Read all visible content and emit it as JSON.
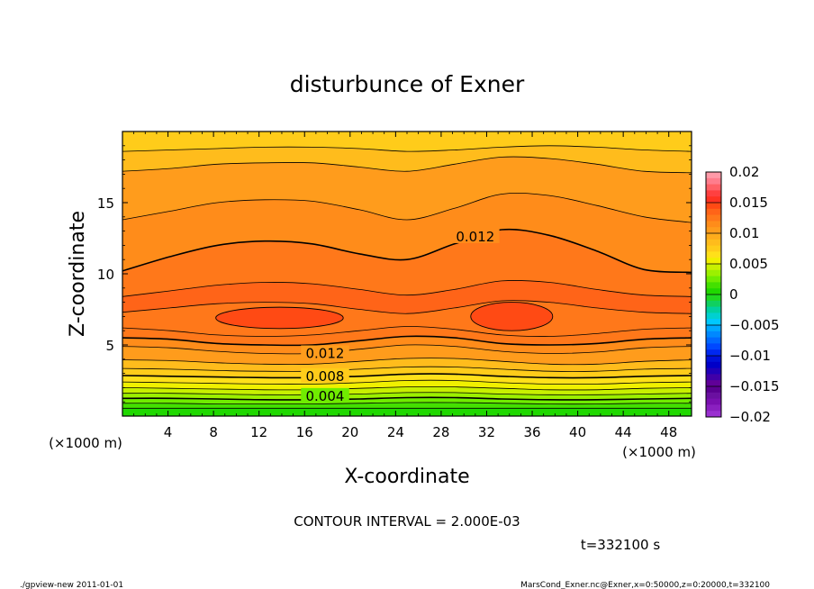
{
  "chart_data": {
    "type": "contour",
    "title": "disturbunce of Exner",
    "xlabel": "X-coordinate",
    "ylabel": "Z-coordinate",
    "x_unit_left": "(×1000 m)",
    "x_unit_right": "(×1000 m)",
    "xlim": [
      0,
      50
    ],
    "ylim": [
      0,
      20
    ],
    "x_ticks": [
      4,
      8,
      12,
      16,
      20,
      24,
      28,
      32,
      36,
      40,
      44,
      48
    ],
    "x_tick_labels": [
      "4",
      "8",
      "12",
      "16",
      "20",
      "24",
      "28",
      "32",
      "36",
      "40",
      "44",
      "48"
    ],
    "y_ticks": [
      5,
      10,
      15
    ],
    "y_tick_labels": [
      "5",
      "10",
      "15"
    ],
    "contour_interval_text": "CONTOUR INTERVAL = 2.000E-03",
    "contour_labels": [
      {
        "text": "0.012",
        "x": 31.0,
        "z": 12.6
      },
      {
        "text": "0.012",
        "x": 17.8,
        "z": 4.4
      },
      {
        "text": "0.008",
        "x": 17.8,
        "z": 2.8
      },
      {
        "text": "0.004",
        "x": 17.8,
        "z": 1.4
      }
    ],
    "colorbar": {
      "levels": [
        0.02,
        0.019,
        0.018,
        0.017,
        0.016,
        0.015,
        0.014,
        0.013,
        0.012,
        0.011,
        0.01,
        0.009,
        0.008,
        0.007,
        0.006,
        0.005,
        0.004,
        0.003,
        0.002,
        0.001,
        0,
        -0.001,
        -0.002,
        -0.003,
        -0.004,
        -0.005,
        -0.006,
        -0.007,
        -0.008,
        -0.009,
        -0.01,
        -0.011,
        -0.012,
        -0.013,
        -0.014,
        -0.015,
        -0.016,
        -0.017,
        -0.018,
        -0.019,
        -0.02
      ],
      "colors": [
        "#ff9aa8",
        "#ff7d8c",
        "#ff6066",
        "#ff4040",
        "#ff3222",
        "#ff4a14",
        "#ff6418",
        "#ff781a",
        "#ff8c1a",
        "#ff9c1c",
        "#ffac1c",
        "#ffbc1c",
        "#ffcc1a",
        "#ffe01a",
        "#f0f000",
        "#c8f000",
        "#9cf000",
        "#70ec00",
        "#44e000",
        "#20d800",
        "#20d820",
        "#10d060",
        "#00d0a0",
        "#00d0d0",
        "#00c8ff",
        "#00a8ff",
        "#0088ff",
        "#0068ff",
        "#0048ff",
        "#0028f0",
        "#0010d8",
        "#0000c8",
        "#2000b8",
        "#4000a8",
        "#600098",
        "#5a0090",
        "#6a10a0",
        "#7a10b0",
        "#8a20c0",
        "#9a30d0"
      ],
      "tick_values": [
        0.02,
        0.015,
        0.01,
        0.005,
        0,
        -0.005,
        -0.01,
        -0.015,
        -0.02
      ],
      "tick_labels": [
        "0.02",
        "0.015",
        "0.01",
        "0.005",
        "0",
        "−0.005",
        "−0.01",
        "−0.015",
        "−0.02"
      ]
    },
    "field_bands": [
      {
        "level": 0.002,
        "color": "#20d800",
        "z": [
          0.55,
          0.55,
          0.55,
          0.55,
          0.55,
          0.55,
          0.55,
          0.55,
          0.55,
          0.55,
          0.55,
          0.55,
          0.55
        ]
      },
      {
        "level": 0.003,
        "color": "#44e000",
        "z": [
          0.9,
          0.9,
          0.85,
          0.85,
          0.85,
          0.9,
          0.95,
          0.95,
          0.9,
          0.85,
          0.85,
          0.9,
          0.9
        ]
      },
      {
        "level": 0.004,
        "color": "#70ec00",
        "z": [
          1.25,
          1.25,
          1.2,
          1.15,
          1.15,
          1.2,
          1.3,
          1.3,
          1.2,
          1.15,
          1.15,
          1.2,
          1.25
        ]
      },
      {
        "level": 0.005,
        "color": "#9cf000",
        "z": [
          1.6,
          1.6,
          1.55,
          1.5,
          1.5,
          1.55,
          1.65,
          1.65,
          1.55,
          1.5,
          1.5,
          1.55,
          1.6
        ]
      },
      {
        "level": 0.006,
        "color": "#c8f000",
        "z": [
          2.0,
          1.95,
          1.9,
          1.85,
          1.85,
          1.95,
          2.05,
          2.05,
          1.95,
          1.85,
          1.85,
          1.95,
          2.0
        ]
      },
      {
        "level": 0.007,
        "color": "#f0f000",
        "z": [
          2.4,
          2.35,
          2.3,
          2.25,
          2.25,
          2.35,
          2.5,
          2.5,
          2.35,
          2.25,
          2.25,
          2.35,
          2.4
        ]
      },
      {
        "level": 0.008,
        "color": "#ffe01a",
        "z": [
          2.85,
          2.8,
          2.75,
          2.7,
          2.7,
          2.8,
          2.95,
          2.95,
          2.8,
          2.7,
          2.7,
          2.8,
          2.85
        ]
      },
      {
        "level": 0.009,
        "color": "#ffcc1a",
        "z": [
          3.35,
          3.3,
          3.2,
          3.15,
          3.15,
          3.3,
          3.45,
          3.45,
          3.3,
          3.15,
          3.15,
          3.3,
          3.35
        ]
      },
      {
        "level": 0.01,
        "color": "#ffbc1c",
        "z": [
          3.95,
          3.9,
          3.75,
          3.65,
          3.65,
          3.85,
          4.05,
          4.05,
          3.85,
          3.65,
          3.65,
          3.85,
          3.95
        ]
      },
      {
        "level": 0.011,
        "color": "#ff9c1c",
        "z": [
          4.9,
          4.8,
          4.55,
          4.4,
          4.4,
          4.7,
          5.0,
          4.9,
          4.55,
          4.4,
          4.5,
          4.8,
          4.9
        ]
      },
      {
        "level": 0.012,
        "color": "#ff8c1a",
        "z": [
          5.5,
          5.4,
          5.1,
          5.0,
          5.0,
          5.3,
          5.6,
          5.5,
          5.1,
          5.0,
          5.1,
          5.4,
          5.5
        ]
      },
      {
        "level": 0.013,
        "color": "#ff781a",
        "z": [
          6.2,
          6.0,
          5.7,
          5.6,
          5.7,
          6.0,
          6.3,
          6.1,
          5.7,
          5.6,
          5.8,
          6.1,
          6.2
        ]
      }
    ],
    "field_bands_upper": [
      {
        "level": 0.009,
        "color": "#ffcc1a",
        "z": [
          18.6,
          18.7,
          18.8,
          18.9,
          18.9,
          18.8,
          18.6,
          18.7,
          18.9,
          19.0,
          18.9,
          18.7,
          18.6
        ]
      },
      {
        "level": 0.01,
        "color": "#ffbc1c",
        "z": [
          17.2,
          17.4,
          17.7,
          17.8,
          17.8,
          17.5,
          17.2,
          17.7,
          18.2,
          18.1,
          17.7,
          17.2,
          17.1
        ]
      },
      {
        "level": 0.011,
        "color": "#ff9c1c",
        "z": [
          13.8,
          14.4,
          15.0,
          15.2,
          15.1,
          14.5,
          13.8,
          14.6,
          15.6,
          15.5,
          14.8,
          14.0,
          13.6
        ]
      },
      {
        "level": 0.012,
        "color": "#ff8c1a",
        "z": [
          10.2,
          11.2,
          12.0,
          12.3,
          12.1,
          11.4,
          11.0,
          12.1,
          13.1,
          12.7,
          11.6,
          10.3,
          10.1
        ]
      },
      {
        "level": 0.013,
        "color": "#ff781a",
        "z": [
          8.4,
          8.8,
          9.2,
          9.4,
          9.3,
          8.9,
          8.5,
          8.9,
          9.5,
          9.4,
          8.9,
          8.5,
          8.4
        ]
      },
      {
        "level": 0.014,
        "color": "#ff6418",
        "z": [
          7.3,
          7.6,
          7.9,
          8.0,
          7.9,
          7.5,
          7.2,
          7.6,
          8.1,
          8.0,
          7.6,
          7.3,
          7.2
        ]
      }
    ],
    "cores": [
      {
        "level": 0.015,
        "color": "#ff4a14",
        "x_center": 13.8,
        "z_center": 6.9,
        "x_radius": 5.6,
        "z_radius": 0.75
      },
      {
        "level": 0.015,
        "color": "#ff4a14",
        "x_center": 34.2,
        "z_center": 7.0,
        "x_radius": 3.6,
        "z_radius": 1.0
      }
    ]
  },
  "footer": {
    "timestamp": "t=332100 s",
    "program": "./gpview-new   2011-01-01",
    "source": "MarsCond_Exner.nc@Exner,x=0:50000,z=0:20000,t=332100"
  }
}
